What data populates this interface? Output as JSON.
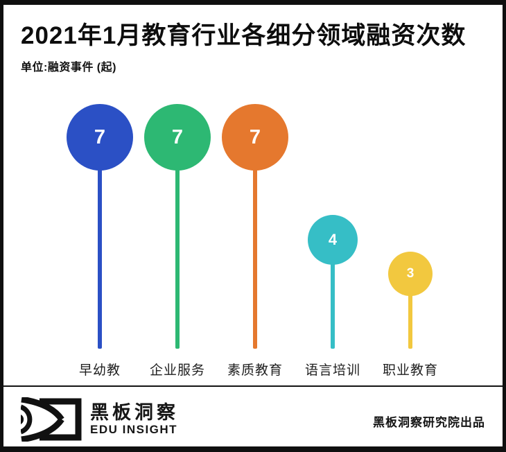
{
  "header": {
    "title": "2021年1月教育行业各细分领域融资次数",
    "unit_label": "单位:融资事件 (起)"
  },
  "chart_data": {
    "type": "bar",
    "variant": "lollipop",
    "title": "2021年1月教育行业各细分领域融资次数",
    "categories": [
      "早幼教",
      "企业服务",
      "素质教育",
      "语言培训",
      "职业教育"
    ],
    "values": [
      7,
      7,
      7,
      4,
      3
    ],
    "colors": [
      "#2b50c5",
      "#2db873",
      "#e5782e",
      "#36bec6",
      "#f2c83f"
    ],
    "xlabel": "",
    "ylabel": "融资事件 (起)",
    "ylim": [
      0,
      8
    ],
    "grid": false,
    "legend": "none",
    "value_label_color": "#ffffff"
  },
  "footer": {
    "logo_text": "黑板洞察",
    "logo_subtext": "EDU INSIGHT",
    "credit": "黑板洞察研究院出品"
  }
}
